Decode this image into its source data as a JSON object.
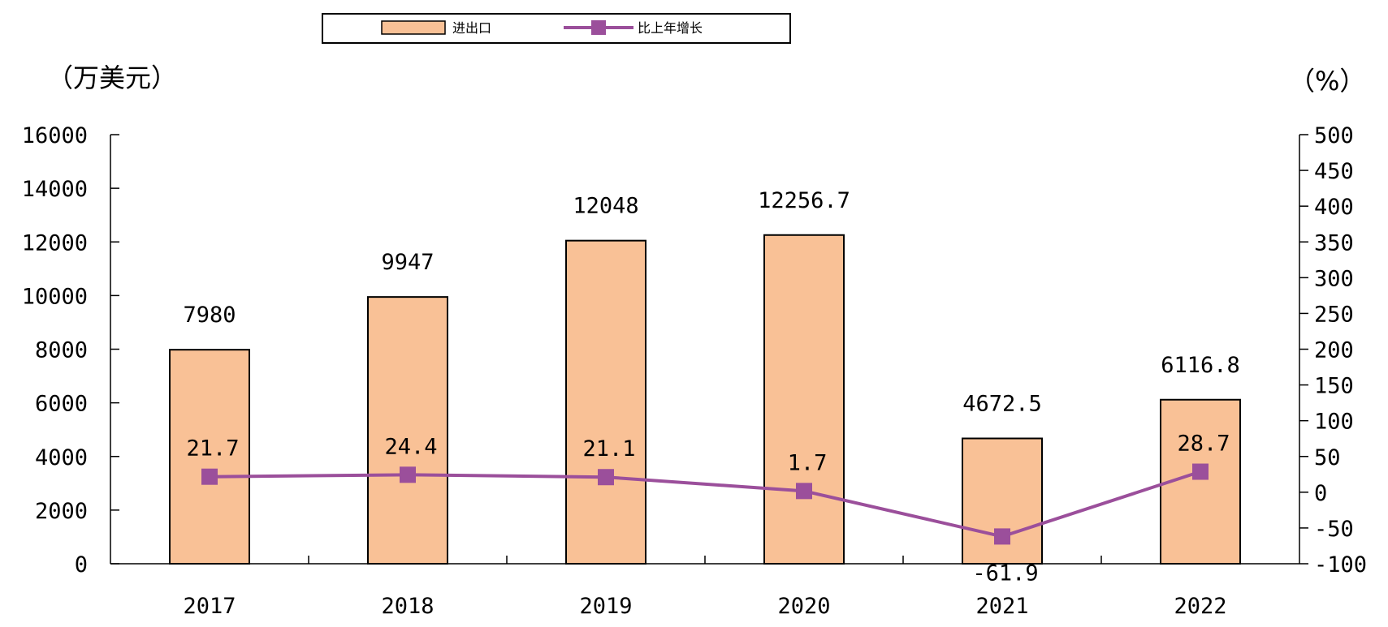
{
  "chart_data": {
    "type": "bar",
    "categories": [
      "2017",
      "2018",
      "2019",
      "2020",
      "2021",
      "2022"
    ],
    "series": [
      {
        "name": "进出口",
        "type": "bar",
        "axis": "left",
        "color": "#f9c196",
        "values": [
          7980,
          9947,
          12048,
          12256.7,
          4672.5,
          6116.8
        ],
        "labels": [
          "7980",
          "9947",
          "12048",
          "12256.7",
          "4672.5",
          "6116.8"
        ]
      },
      {
        "name": "比上年增长",
        "type": "line",
        "axis": "right",
        "color": "#9b4f9b",
        "values": [
          21.7,
          24.4,
          21.1,
          1.7,
          -61.9,
          28.7
        ],
        "labels": [
          "21.7",
          "24.4",
          "21.1",
          "1.7",
          "-61.9",
          "28.7"
        ]
      }
    ],
    "y_left": {
      "unit": "（万美元）",
      "ylim": [
        0,
        16000
      ],
      "ticks": [
        "0",
        "2000",
        "4000",
        "6000",
        "8000",
        "10000",
        "12000",
        "14000",
        "16000"
      ]
    },
    "y_right": {
      "unit": "（%）",
      "ylim": [
        -100,
        500
      ],
      "ticks": [
        "-100",
        "-50",
        "0",
        "50",
        "100",
        "150",
        "200",
        "250",
        "300",
        "350",
        "400",
        "450",
        "500"
      ]
    },
    "legend_position": "top",
    "grid": false
  }
}
